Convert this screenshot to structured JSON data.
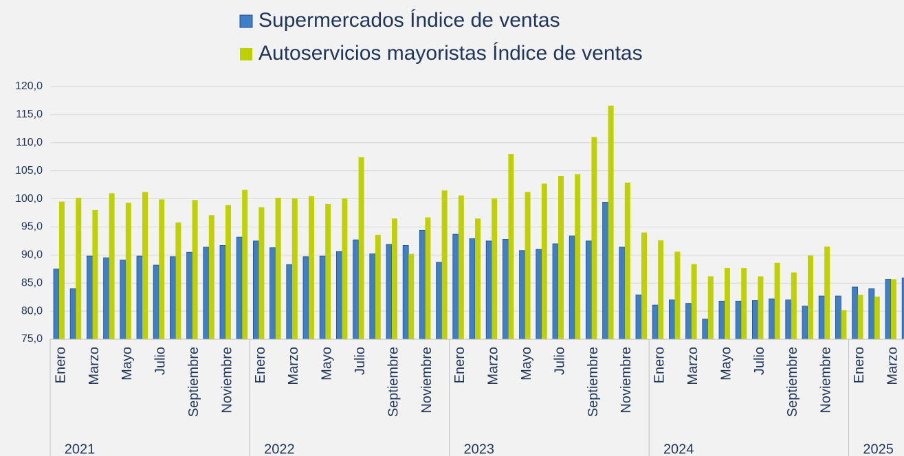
{
  "chart_data": {
    "type": "bar",
    "categories": [
      "Enero",
      null,
      "Marzo",
      null,
      "Mayo",
      null,
      "Julio",
      null,
      "Septiembre",
      null,
      "Noviembre",
      null,
      "Enero",
      null,
      "Marzo",
      null,
      "Mayo",
      null,
      "Julio",
      null,
      "Septiembre",
      null,
      "Noviembre",
      null,
      "Enero",
      null,
      "Marzo",
      null,
      "Mayo",
      null,
      "Julio",
      null,
      "Septiembre",
      null,
      "Noviembre",
      null,
      "Enero",
      null,
      "Marzo",
      null,
      "Mayo",
      null,
      "Julio",
      null,
      "Septiembre",
      null,
      "Noviembre",
      null,
      "Enero",
      null,
      "Marzo",
      null
    ],
    "years": [
      "2021",
      "2022",
      "2023",
      "2024",
      "2025"
    ],
    "series": [
      {
        "name": "Supermercados Índice de ventas",
        "color": "#3f7fc7",
        "values": [
          87.5,
          84.0,
          89.8,
          89.5,
          89.1,
          89.8,
          88.2,
          89.7,
          90.5,
          91.4,
          91.7,
          93.2,
          92.5,
          91.3,
          88.3,
          89.7,
          89.8,
          90.6,
          92.7,
          90.2,
          91.9,
          91.7,
          94.4,
          88.7,
          93.7,
          92.9,
          92.5,
          92.8,
          90.8,
          91.0,
          92.0,
          93.4,
          92.5,
          99.4,
          91.4,
          82.9,
          81.1,
          82.0,
          81.4,
          78.6,
          81.8,
          81.8,
          81.9,
          82.2,
          82.0,
          80.9,
          82.7,
          82.7,
          84.3,
          84.0,
          85.7,
          85.9
        ]
      },
      {
        "name": "Autoservicios mayoristas Índice de ventas",
        "color": "#bfd100",
        "values": [
          99.5,
          100.2,
          98.0,
          101.0,
          99.3,
          101.2,
          99.9,
          95.8,
          99.8,
          97.1,
          98.9,
          101.6,
          98.5,
          100.2,
          100.1,
          100.5,
          99.1,
          100.1,
          107.4,
          93.6,
          96.5,
          90.2,
          96.7,
          101.5,
          100.6,
          96.5,
          100.1,
          108.0,
          101.2,
          102.7,
          104.1,
          104.4,
          111.0,
          116.6,
          102.9,
          94.0,
          92.6,
          90.6,
          88.4,
          86.2,
          87.7,
          87.7,
          86.2,
          88.6,
          86.9,
          89.9,
          91.5,
          80.2,
          82.9,
          82.6,
          85.7,
          null
        ]
      }
    ],
    "ylim": [
      75,
      120
    ],
    "yticks": [
      {
        "value": 75,
        "label": "75,0"
      },
      {
        "value": 80,
        "label": "80,0"
      },
      {
        "value": 85,
        "label": "85,0"
      },
      {
        "value": 90,
        "label": "90,0"
      },
      {
        "value": 95,
        "label": "95,0"
      },
      {
        "value": 100,
        "label": "100,0"
      },
      {
        "value": 105,
        "label": "105,0"
      },
      {
        "value": 110,
        "label": "110,0"
      },
      {
        "value": 115,
        "label": "115,0"
      },
      {
        "value": 120,
        "label": "120,0"
      }
    ],
    "grid": true
  }
}
